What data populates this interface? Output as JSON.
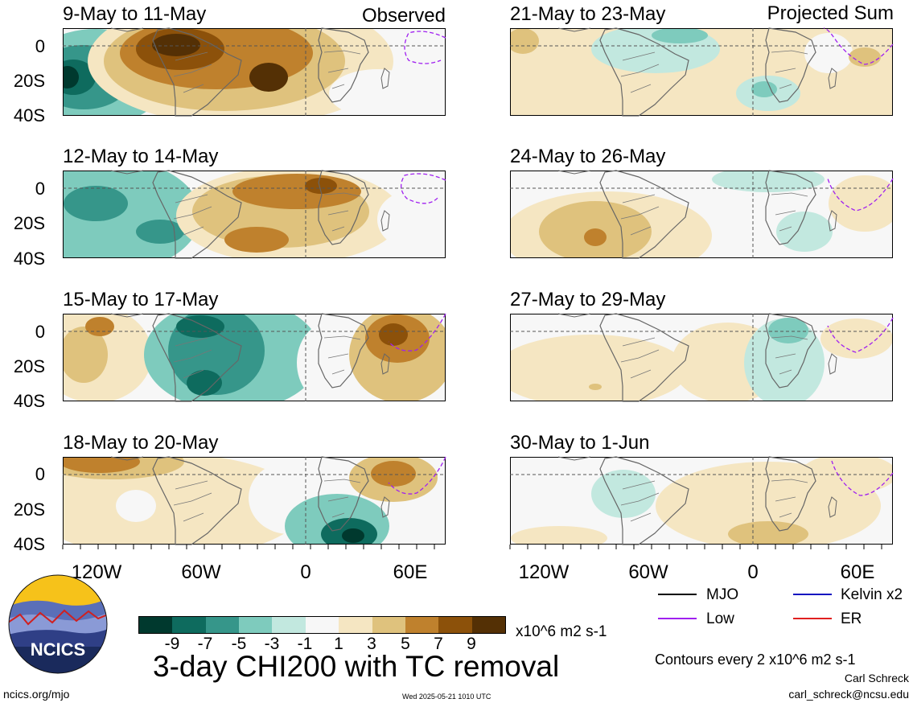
{
  "left_header": "Observed",
  "right_header": "Projected Sum",
  "panels_left": [
    {
      "title": "9-May to 11-May"
    },
    {
      "title": "12-May to 14-May"
    },
    {
      "title": "15-May to 17-May"
    },
    {
      "title": "18-May to 20-May"
    }
  ],
  "panels_right": [
    {
      "title": "21-May to 23-May"
    },
    {
      "title": "24-May to 26-May"
    },
    {
      "title": "27-May to 29-May"
    },
    {
      "title": "30-May to 1-Jun"
    }
  ],
  "lat_ticks": [
    "0",
    "20S",
    "40S"
  ],
  "lon_ticks": [
    "120W",
    "60W",
    "0",
    "60E"
  ],
  "legend": {
    "mjo": "MJO",
    "kelvin": "Kelvin x2",
    "low": "Low",
    "er": "ER",
    "colors": {
      "mjo": "#000000",
      "kelvin": "#1010c0",
      "low": "#a020f0",
      "er": "#e02020"
    }
  },
  "colorbar": {
    "ticks": [
      "-9",
      "-7",
      "-5",
      "-3",
      "-1",
      "1",
      "3",
      "5",
      "7",
      "9"
    ],
    "units": "x10^6 m2 s-1",
    "colors": [
      "#00392e",
      "#0e6b5e",
      "#36968a",
      "#7ecbbd",
      "#c2e8df",
      "#f7f7f7",
      "#f5e6c2",
      "#dfc27d",
      "#bf812d",
      "#8c510a",
      "#543005"
    ]
  },
  "contour_note": "Contours every 2 x10^6 m2 s-1",
  "main_title": "3-day CHI200 with TC removal",
  "logo_text": "NCICS",
  "footer_left": "ncics.org/mjo",
  "footer_mid": "Wed 2025-05-21 1010 UTC",
  "author": "Carl Schreck",
  "email": "carl_schreck@ncsu.edu"
}
